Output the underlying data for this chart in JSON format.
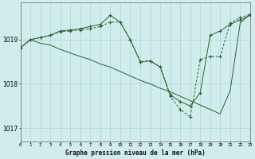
{
  "title": "Graphe pression niveau de la mer (hPa)",
  "bg_color": "#d1ecec",
  "line_color": "#2a602a",
  "grid_color": "#add5d5",
  "xlim": [
    0,
    23
  ],
  "ylim": [
    1016.7,
    1019.85
  ],
  "yticks": [
    1017,
    1018,
    1019
  ],
  "xtick_labels": [
    "0",
    "1",
    "2",
    "3",
    "4",
    "5",
    "6",
    "7",
    "8",
    "9",
    "10",
    "11",
    "12",
    "13",
    "14",
    "15",
    "16",
    "17",
    "18",
    "19",
    "20",
    "21",
    "22",
    "23"
  ],
  "s1_x": [
    0,
    1,
    2,
    3,
    4,
    5,
    6,
    7,
    8,
    9,
    10,
    11,
    12,
    13,
    14,
    15,
    16,
    17,
    18,
    19,
    20,
    21,
    22,
    23
  ],
  "s1_y": [
    1018.82,
    1019.0,
    1019.05,
    1019.1,
    1019.2,
    1019.22,
    1019.25,
    1019.3,
    1019.35,
    1019.55,
    1019.4,
    1019.0,
    1018.5,
    1018.52,
    1018.38,
    1017.75,
    1017.6,
    1017.5,
    1017.8,
    1019.1,
    1019.2,
    1019.35,
    1019.45,
    1019.55
  ],
  "s2_x": [
    0,
    1,
    2,
    3,
    4,
    5,
    6,
    7,
    8,
    9,
    10,
    11,
    12,
    13,
    14,
    15,
    16,
    17,
    18,
    19,
    20,
    21,
    22,
    23
  ],
  "s2_y": [
    1018.82,
    1019.0,
    1019.05,
    1019.1,
    1019.18,
    1019.2,
    1019.22,
    1019.25,
    1019.3,
    1019.4,
    1019.4,
    1019.0,
    1018.5,
    1018.52,
    1018.38,
    1017.72,
    1017.42,
    1017.25,
    1018.55,
    1018.62,
    1018.62,
    1019.38,
    1019.5,
    1019.58
  ],
  "s3_x": [
    0,
    1,
    2,
    3,
    4,
    5,
    6,
    7,
    8,
    9,
    10,
    11,
    12,
    13,
    14,
    15,
    16,
    17,
    18,
    19,
    20,
    21,
    22,
    23
  ],
  "s3_y": [
    1018.82,
    1019.0,
    1018.92,
    1018.88,
    1018.78,
    1018.7,
    1018.62,
    1018.55,
    1018.45,
    1018.38,
    1018.28,
    1018.18,
    1018.08,
    1018.0,
    1017.9,
    1017.82,
    1017.72,
    1017.62,
    1017.52,
    1017.42,
    1017.32,
    1017.85,
    1019.38,
    1019.58
  ]
}
